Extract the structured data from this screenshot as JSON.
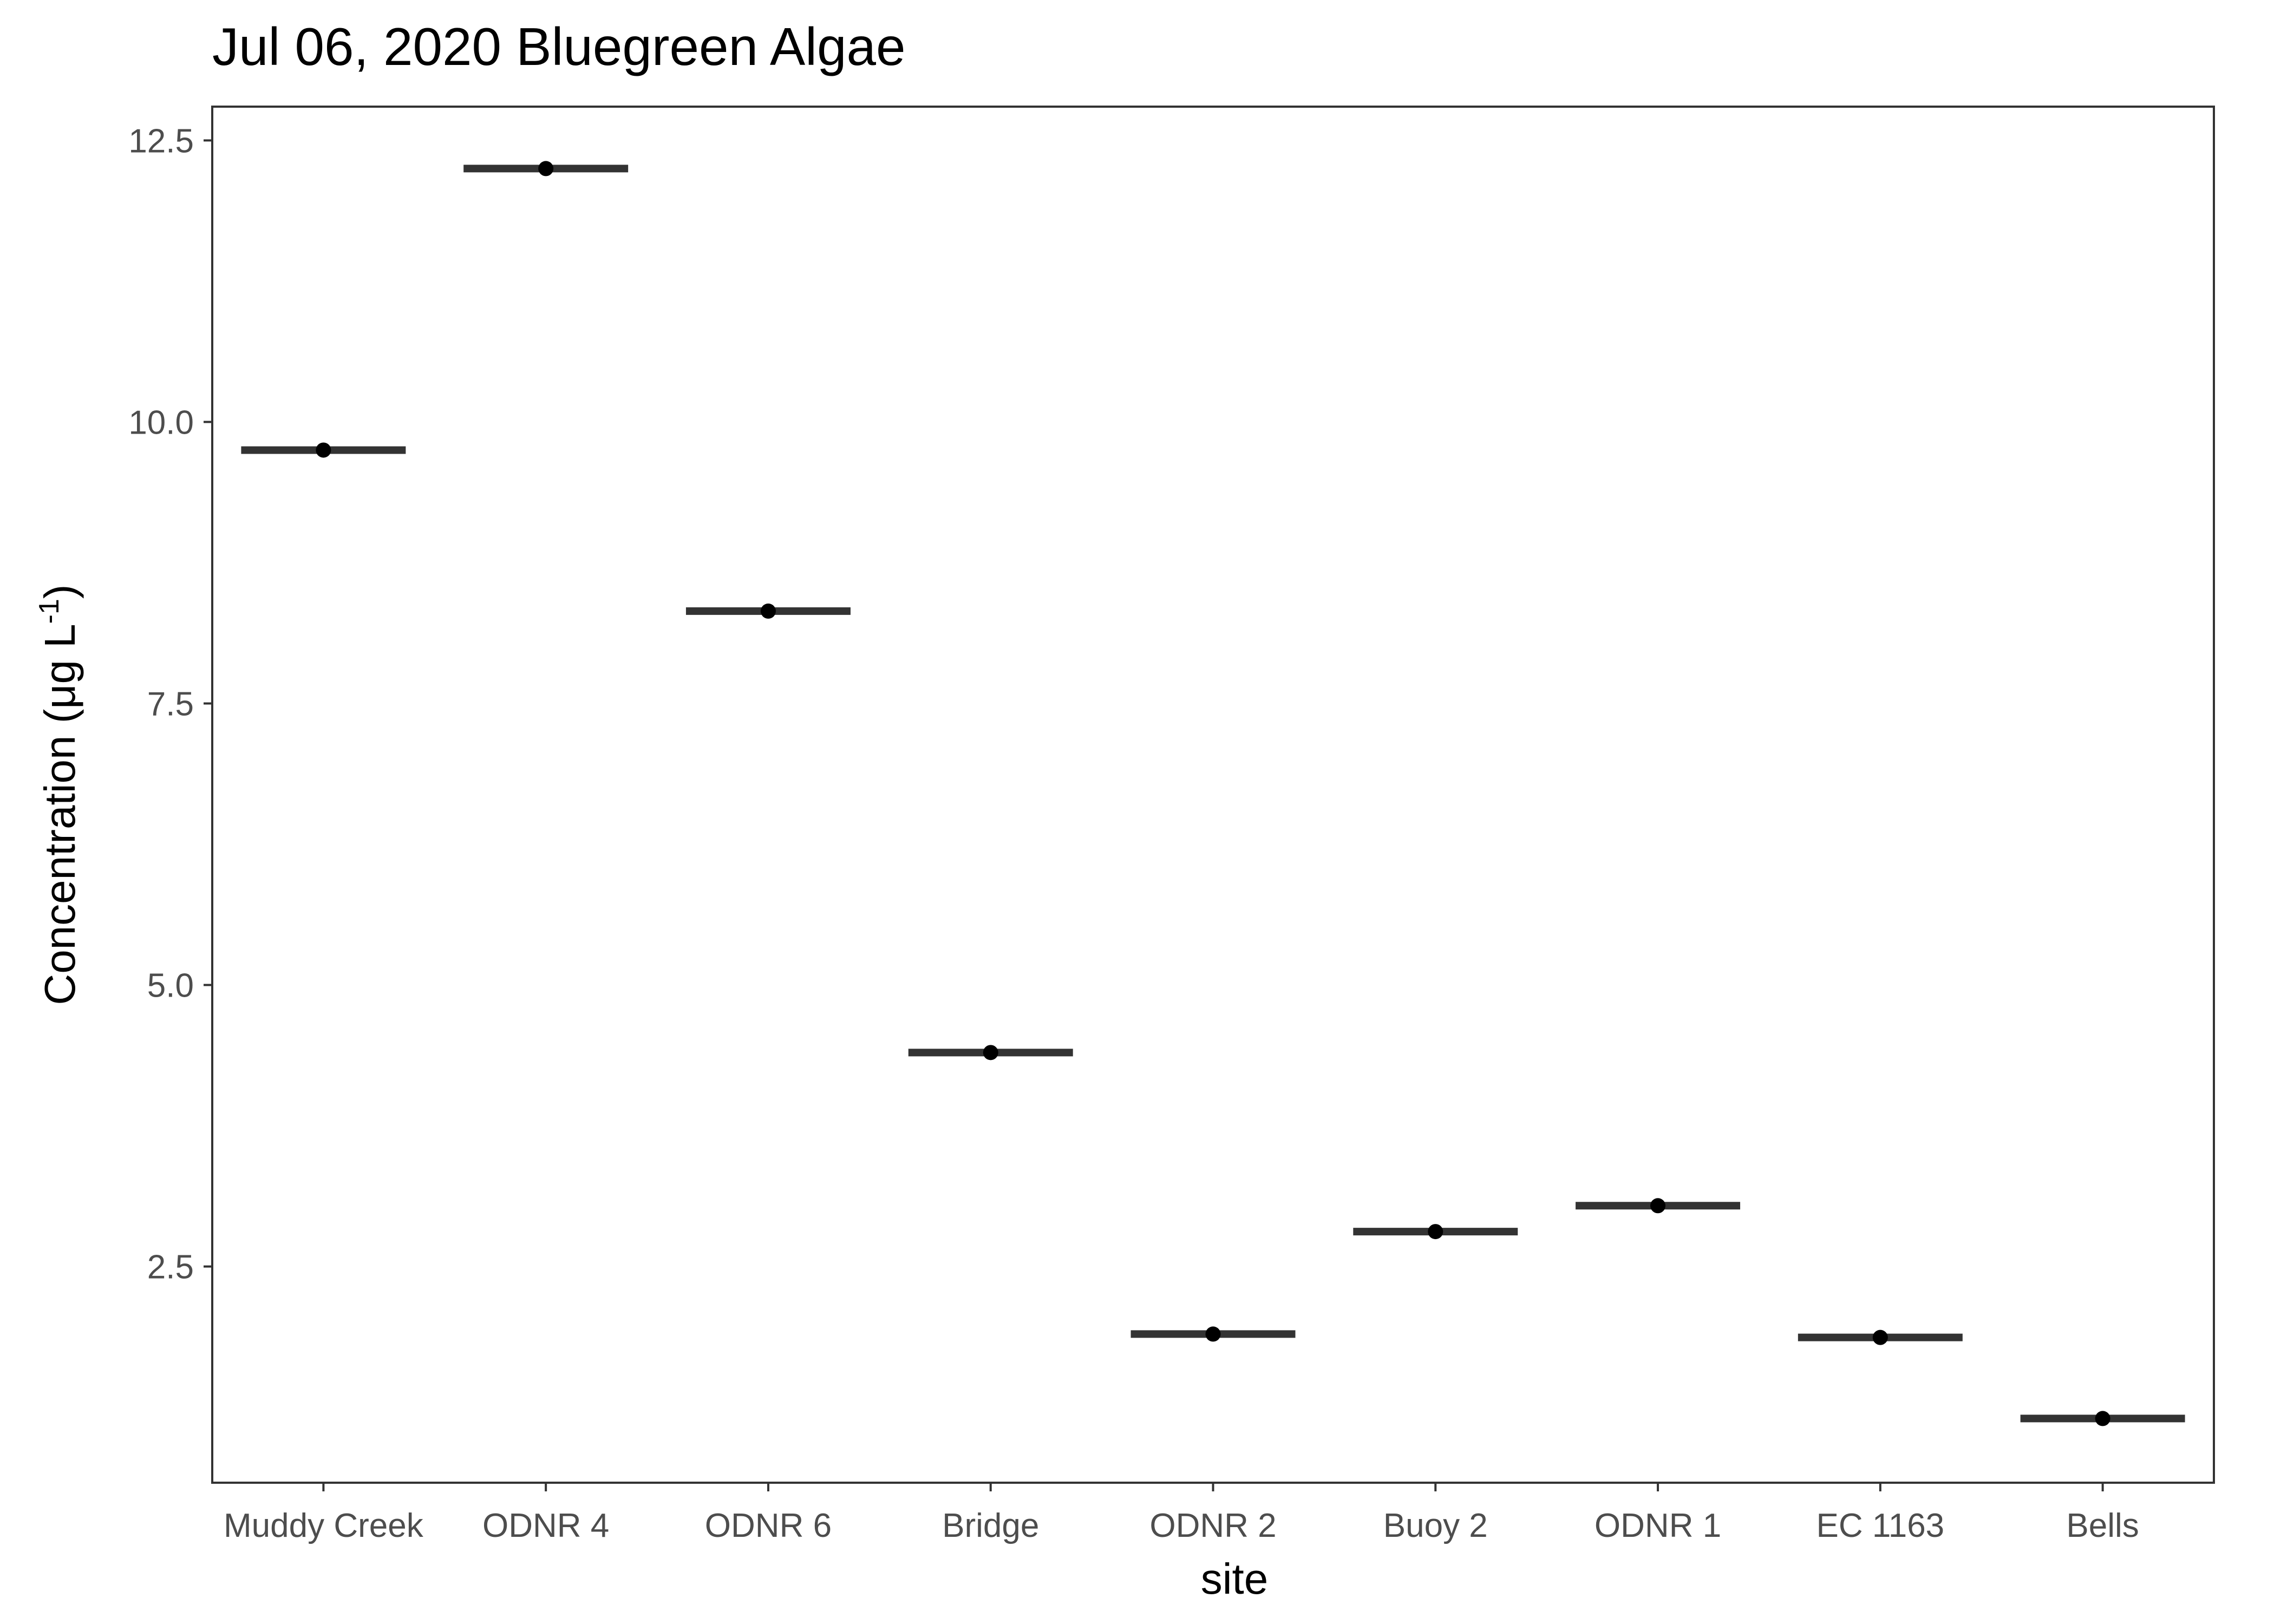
{
  "chart_data": {
    "type": "scatter",
    "title": "Jul 06, 2020 Bluegreen Algae",
    "xlabel": "site",
    "ylabel": {
      "main": "Concentration (μg L",
      "superscript": "-1",
      "close": ")"
    },
    "categories": [
      "Muddy Creek",
      "ODNR 4",
      "ODNR 6",
      "Bridge",
      "ODNR 2",
      "Buoy 2",
      "ODNR 1",
      "EC 1163",
      "Bells"
    ],
    "values": [
      9.75,
      12.25,
      8.32,
      4.4,
      1.9,
      2.81,
      3.04,
      1.87,
      1.15
    ],
    "yticks": [
      2.5,
      5.0,
      7.5,
      10.0,
      12.5
    ],
    "ytick_labels": [
      "2.5",
      "5.0",
      "7.5",
      "10.0",
      "12.5"
    ],
    "ylim": [
      0.58,
      12.8
    ],
    "grid": false,
    "legend": "none",
    "colors": {
      "point": "#000000",
      "median_bar": "#333333",
      "panel_border": "#333333",
      "axis_tick": "#333333",
      "tick_label": "#4d4d4d"
    }
  }
}
